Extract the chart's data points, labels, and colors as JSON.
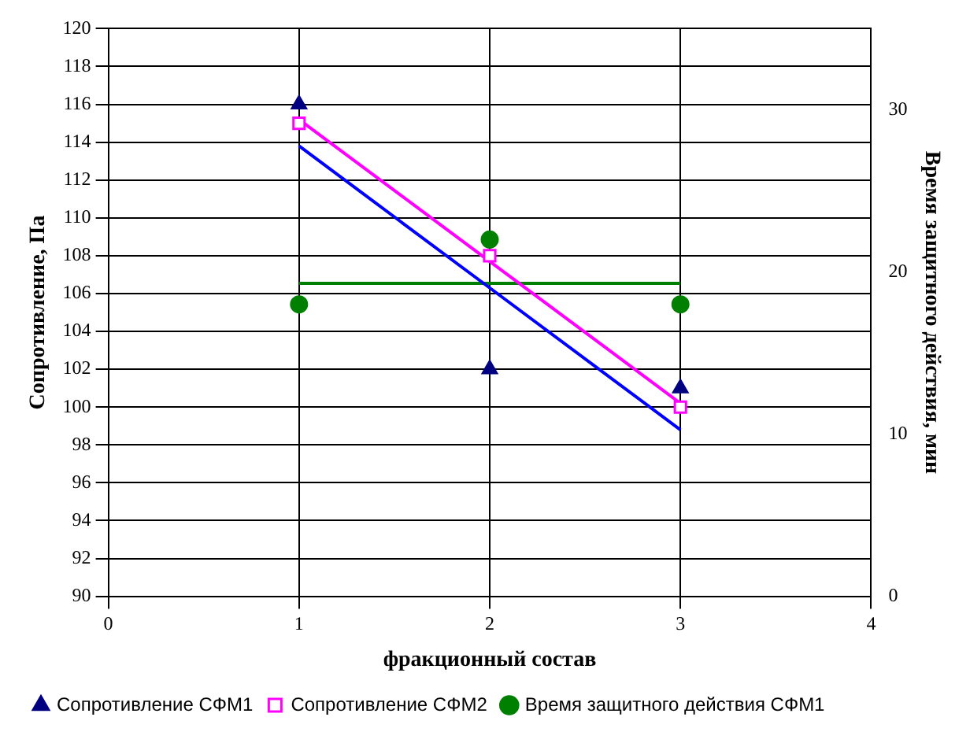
{
  "chart_data": {
    "type": "scatter",
    "xlabel": "фракционный состав",
    "ylabel": "Сопротивление, Па",
    "y2label": "Время защитного действия, мин",
    "xlim": [
      0,
      4
    ],
    "xticks": [
      0,
      1,
      2,
      3,
      4
    ],
    "ylim": [
      90,
      120
    ],
    "yticks": [
      90,
      92,
      94,
      96,
      98,
      100,
      102,
      104,
      106,
      108,
      110,
      112,
      114,
      116,
      118,
      120
    ],
    "y2lim": [
      0,
      35
    ],
    "y2ticks": [
      0,
      10,
      20,
      30
    ],
    "grid": true,
    "legend": "bottom",
    "x": [
      1,
      2,
      3
    ],
    "series": [
      {
        "name": "Сопротивление СФМ1",
        "type": "scatter",
        "marker": "triangle",
        "color": "#000080",
        "values": [
          116,
          102,
          101
        ]
      },
      {
        "name": "Сопротивление СФМ2",
        "type": "scatter",
        "marker": "square",
        "color": "#ff00ff",
        "values": [
          115,
          108,
          100
        ]
      },
      {
        "name": "Время защитного действия СФМ1",
        "type": "scatter",
        "marker": "circle",
        "color": "#008000",
        "axis": "y2",
        "values": [
          18,
          22,
          18
        ]
      },
      {
        "type": "line",
        "marker": "none",
        "color": "#0000ff",
        "values": [
          113.8,
          106.3,
          98.8
        ]
      },
      {
        "type": "line",
        "marker": "none",
        "color": "#ff00ff",
        "values": [
          115.2,
          107.7,
          100.2
        ]
      },
      {
        "type": "line",
        "marker": "none",
        "color": "#008000",
        "axis": "y2",
        "values": [
          19.3,
          19.3,
          19.3
        ]
      }
    ]
  }
}
